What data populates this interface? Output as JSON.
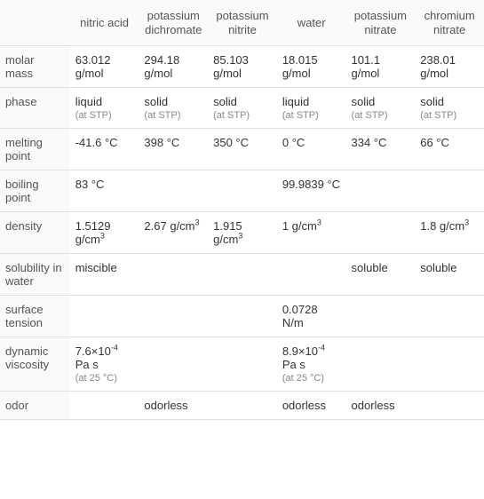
{
  "columns": [
    "",
    "nitric acid",
    "potassium dichromate",
    "potassium nitrite",
    "water",
    "potassium nitrate",
    "chromium nitrate"
  ],
  "rows": [
    {
      "label": "molar mass",
      "cells": [
        {
          "value": "63.012 g/mol"
        },
        {
          "value": "294.18 g/mol"
        },
        {
          "value": "85.103 g/mol"
        },
        {
          "value": "18.015 g/mol"
        },
        {
          "value": "101.1 g/mol"
        },
        {
          "value": "238.01 g/mol"
        }
      ]
    },
    {
      "label": "phase",
      "cells": [
        {
          "value": "liquid",
          "sub": "(at STP)"
        },
        {
          "value": "solid",
          "sub": "(at STP)"
        },
        {
          "value": "solid",
          "sub": "(at STP)"
        },
        {
          "value": "liquid",
          "sub": "(at STP)"
        },
        {
          "value": "solid",
          "sub": "(at STP)"
        },
        {
          "value": "solid",
          "sub": "(at STP)"
        }
      ]
    },
    {
      "label": "melting point",
      "cells": [
        {
          "value": "-41.6 °C"
        },
        {
          "value": "398 °C"
        },
        {
          "value": "350 °C"
        },
        {
          "value": "0 °C"
        },
        {
          "value": "334 °C"
        },
        {
          "value": "66 °C"
        }
      ]
    },
    {
      "label": "boiling point",
      "cells": [
        {
          "value": "83 °C"
        },
        {
          "value": ""
        },
        {
          "value": ""
        },
        {
          "value": "99.9839 °C"
        },
        {
          "value": ""
        },
        {
          "value": ""
        }
      ]
    },
    {
      "label": "density",
      "cells": [
        {
          "value": "1.5129 g/cm",
          "sup": "3"
        },
        {
          "value": "2.67 g/cm",
          "sup": "3"
        },
        {
          "value": "1.915 g/cm",
          "sup": "3"
        },
        {
          "value": "1 g/cm",
          "sup": "3"
        },
        {
          "value": ""
        },
        {
          "value": "1.8 g/cm",
          "sup": "3"
        }
      ]
    },
    {
      "label": "solubility in water",
      "cells": [
        {
          "value": "miscible"
        },
        {
          "value": ""
        },
        {
          "value": ""
        },
        {
          "value": ""
        },
        {
          "value": "soluble"
        },
        {
          "value": "soluble"
        }
      ]
    },
    {
      "label": "surface tension",
      "cells": [
        {
          "value": ""
        },
        {
          "value": ""
        },
        {
          "value": ""
        },
        {
          "value": "0.0728 N/m"
        },
        {
          "value": ""
        },
        {
          "value": ""
        }
      ]
    },
    {
      "label": "dynamic viscosity",
      "cells": [
        {
          "value": "7.6×10",
          "sup": "-4",
          "after": " Pa s",
          "sub": "(at 25 °C)"
        },
        {
          "value": ""
        },
        {
          "value": ""
        },
        {
          "value": "8.9×10",
          "sup": "-4",
          "after": " Pa s",
          "sub": "(at 25 °C)"
        },
        {
          "value": ""
        },
        {
          "value": ""
        }
      ]
    },
    {
      "label": "odor",
      "cells": [
        {
          "value": ""
        },
        {
          "value": "odorless"
        },
        {
          "value": ""
        },
        {
          "value": "odorless"
        },
        {
          "value": "odorless"
        },
        {
          "value": ""
        }
      ]
    }
  ]
}
